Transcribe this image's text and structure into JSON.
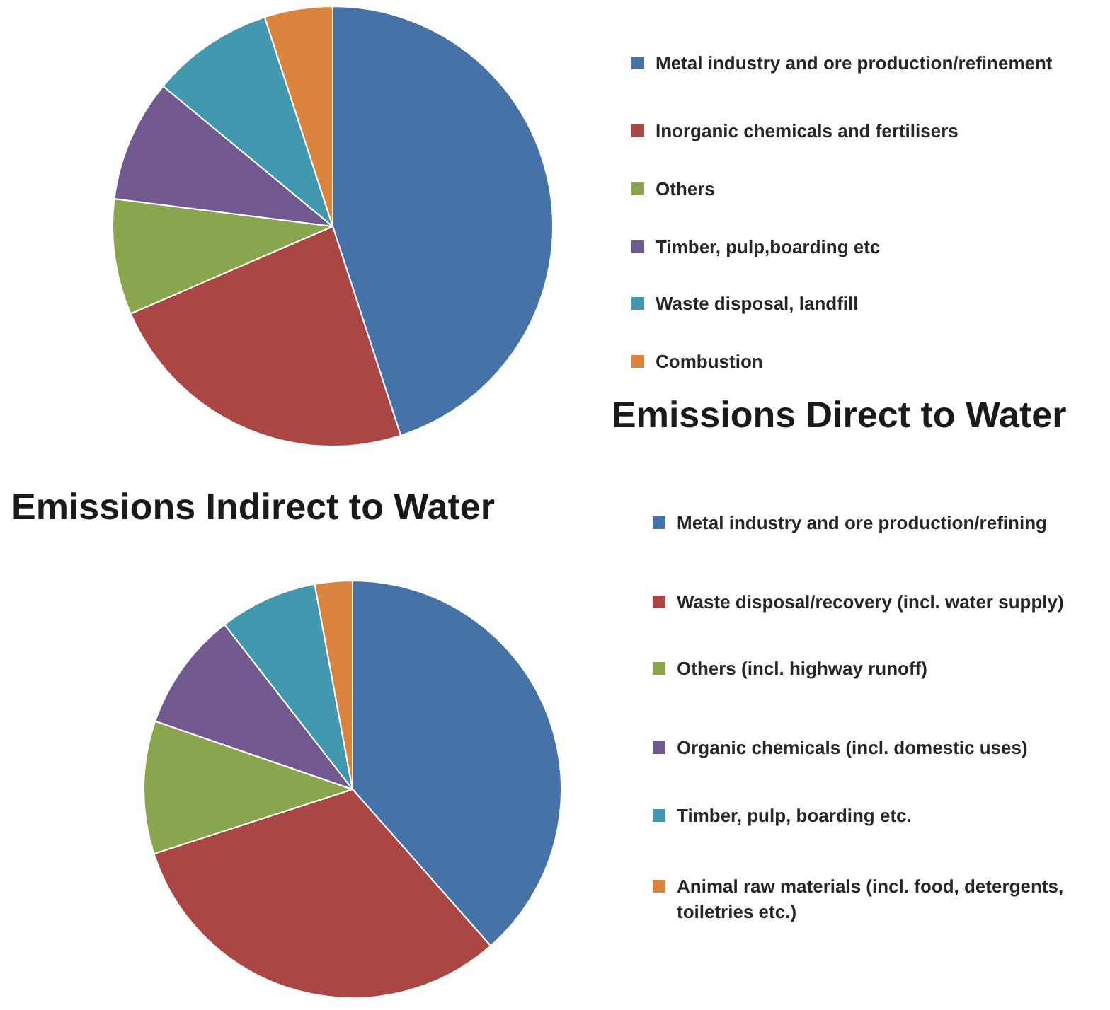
{
  "chart_data": [
    {
      "type": "pie",
      "title": "Emissions Direct to Water",
      "categories": [
        "Metal industry and ore production/refinement",
        "Inorganic chemicals and fertilisers",
        "Others",
        "Timber, pulp,boarding etc",
        "Waste disposal, landfill",
        "Combustion"
      ],
      "values": [
        45,
        23.5,
        8.5,
        9,
        9,
        5
      ],
      "colors": [
        "#4572a7",
        "#aa4643",
        "#89a54e",
        "#71588f",
        "#4198af",
        "#db843d"
      ],
      "legend": "right"
    },
    {
      "type": "pie",
      "title": "Emissions Indirect to Water",
      "categories": [
        "Metal industry and ore production/refining",
        "Waste disposal/recovery (incl. water supply)",
        "Others (incl. highway runoff)",
        "Organic chemicals (incl. domestic uses)",
        "Timber, pulp, boarding etc.",
        "Animal raw materials (incl. food, detergents, toiletries etc.)"
      ],
      "values": [
        38.5,
        31.5,
        10.3,
        9.2,
        7.6,
        2.9
      ],
      "colors": [
        "#4572a7",
        "#aa4643",
        "#89a54e",
        "#71588f",
        "#4198af",
        "#db843d"
      ],
      "legend": "right"
    }
  ]
}
